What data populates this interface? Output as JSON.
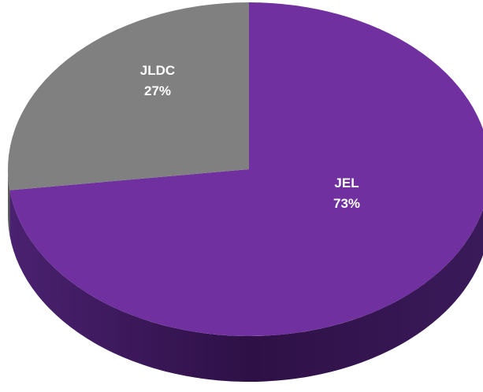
{
  "chart_data": {
    "type": "pie",
    "style": "3d",
    "slices": [
      {
        "label": "JEL",
        "percent_label": "73%",
        "value": 73,
        "color": "#7030A0",
        "side_color": "#3E1A5C"
      },
      {
        "label": "JLDC",
        "percent_label": "27%",
        "value": 27,
        "color": "#808080",
        "side_color": "#5A5A5A"
      }
    ],
    "title": "",
    "legend": "none"
  }
}
